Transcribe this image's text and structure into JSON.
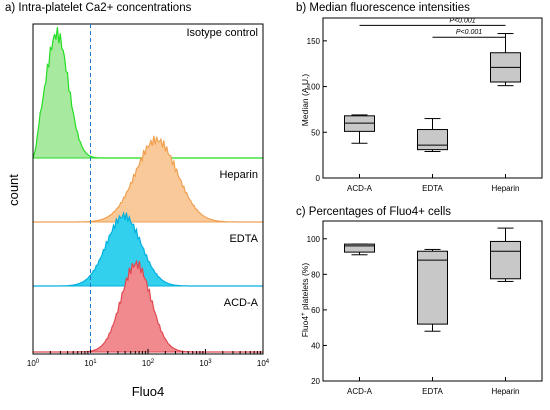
{
  "chart_data": [
    {
      "type": "area",
      "panel": "a",
      "title": "a) Intra-platelet Ca2+ concentrations",
      "xlabel": "Fluo4",
      "ylabel": "count",
      "x_scale": "log",
      "xlim": [
        1,
        10000
      ],
      "x_ticks": [
        {
          "base": "10",
          "exp": "0",
          "value": 1
        },
        {
          "base": "10",
          "exp": "1",
          "value": 10
        },
        {
          "base": "10",
          "exp": "2",
          "value": 100
        },
        {
          "base": "10",
          "exp": "3",
          "value": 1000
        },
        {
          "base": "10",
          "exp": "4",
          "value": 10000
        }
      ],
      "threshold_x": 10,
      "series": [
        {
          "name": "Isotype control",
          "color": "#22dd22",
          "fill": "#a8e9a0",
          "peak": 2.6,
          "spread": 0.2,
          "lead_in": 1.2
        },
        {
          "name": "Heparin",
          "color": "#f0a050",
          "fill": "#f9c99a",
          "peak": 140,
          "spread": 0.36,
          "lead_in": 0
        },
        {
          "name": "EDTA",
          "color": "#00b0e0",
          "fill": "#33d0ee",
          "peak": 38,
          "spread": 0.3,
          "lead_in": 0
        },
        {
          "name": "ACD-A",
          "color": "#e04850",
          "fill": "#f08a8e",
          "peak": 62,
          "spread": 0.26,
          "lead_in": 0
        }
      ]
    },
    {
      "type": "box",
      "panel": "b",
      "title": "b) Median fluorescence intensities",
      "ylabel": "Median (A.U.)",
      "ylim": [
        0,
        175
      ],
      "y_ticks": [
        "0",
        "50",
        "100",
        "150"
      ],
      "y_tick_values": [
        0,
        50,
        100,
        150
      ],
      "categories": [
        "ACD-A",
        "EDTA",
        "Heparin"
      ],
      "boxes": [
        {
          "min": 38,
          "q1": 51,
          "median": 60,
          "q3": 68,
          "max": 69
        },
        {
          "min": 29,
          "q1": 31,
          "median": 36,
          "q3": 53,
          "max": 65
        },
        {
          "min": 101,
          "q1": 105,
          "median": 121,
          "q3": 137,
          "max": 158
        }
      ],
      "significance": [
        {
          "label": "P<0.001",
          "from": "ACD-A",
          "to": "Heparin",
          "y": 167
        },
        {
          "label": "P<0.001",
          "from": "EDTA",
          "to": "Heparin",
          "y": 154
        }
      ]
    },
    {
      "type": "box",
      "panel": "c",
      "title": "c) Percentages of Fluo4+ cells",
      "ylabel": "Fluo4+ platelets (%)",
      "ylabel_parts": {
        "pre": "Fluo4",
        "sup": "+",
        "post": " platelets (%)"
      },
      "ylim": [
        20,
        110
      ],
      "y_ticks": [
        "20",
        "40",
        "60",
        "80",
        "100"
      ],
      "y_tick_values": [
        20,
        40,
        60,
        80,
        100
      ],
      "categories": [
        "ACD-A",
        "EDTA",
        "Heparin"
      ],
      "boxes": [
        {
          "min": 91,
          "q1": 92.5,
          "median": 96,
          "q3": 97,
          "max": 97
        },
        {
          "min": 48,
          "q1": 52,
          "median": 88,
          "q3": 93,
          "max": 94
        },
        {
          "min": 76,
          "q1": 77.5,
          "median": 93,
          "q3": 98.5,
          "max": 106
        }
      ]
    }
  ]
}
